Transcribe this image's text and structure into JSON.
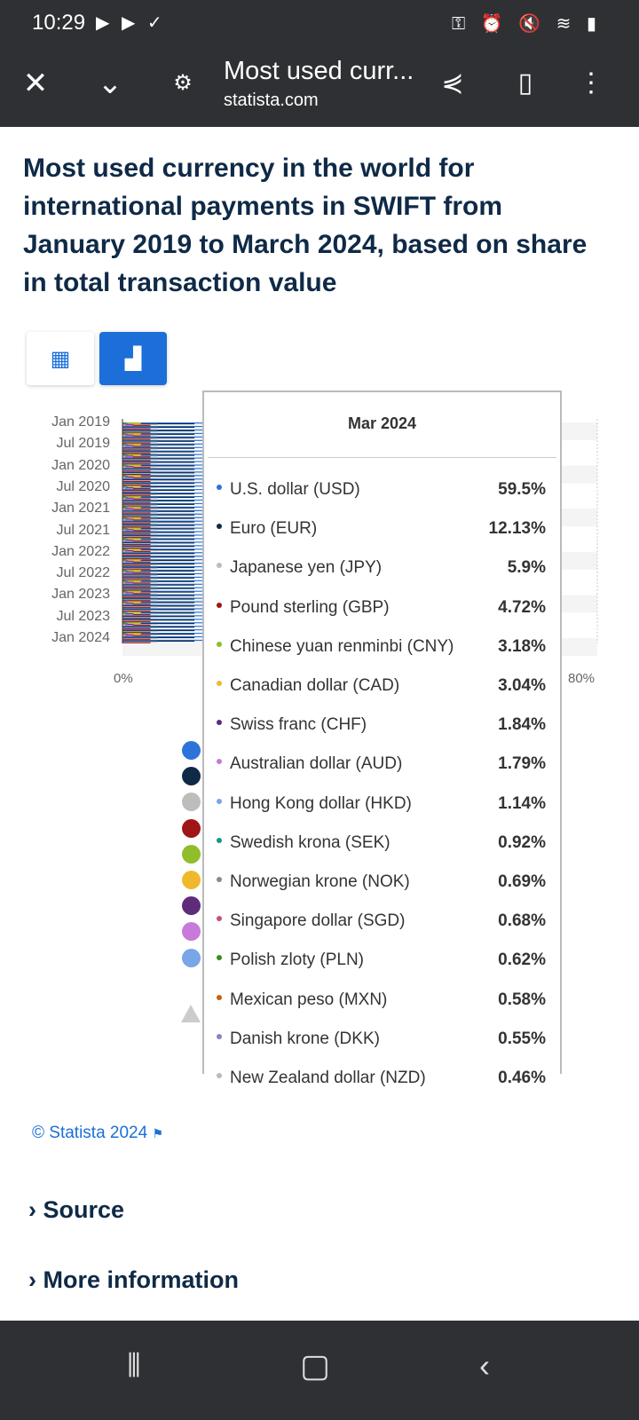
{
  "status_bar": {
    "time": "10:29"
  },
  "browser": {
    "title": "Most used curr...",
    "url": "statista.com"
  },
  "page": {
    "title": "Most used currency in the world for international payments in SWIFT from January 2019 to March 2024, based on share in total transaction value"
  },
  "footer": {
    "copyright": "© Statista 2024",
    "source": "Source",
    "more_info": "More information"
  },
  "colors": {
    "accent": "#1c6fd8",
    "title": "#0f2a47"
  },
  "chart_data": {
    "type": "bar",
    "orientation": "horizontal",
    "y_tick_labels": [
      "Jan 2019",
      "Jul 2019",
      "Jan 2020",
      "Jul 2020",
      "Jan 2021",
      "Jul 2021",
      "Jan 2022",
      "Jul 2022",
      "Jan 2023",
      "Jul 2023",
      "Jan 2024"
    ],
    "x_tick_labels": [
      "0%",
      "80%"
    ],
    "xlim": [
      0,
      80
    ],
    "tooltip": {
      "title": "Mar 2024",
      "series": [
        {
          "name": "U.S. dollar (USD)",
          "value": 59.5,
          "label": "59.5%",
          "color": "#2d73d9"
        },
        {
          "name": "Euro (EUR)",
          "value": 12.13,
          "label": "12.13%",
          "color": "#0f2a47"
        },
        {
          "name": "Japanese yen (JPY)",
          "value": 5.9,
          "label": "5.9%",
          "color": "#bdbdbd"
        },
        {
          "name": "Pound sterling (GBP)",
          "value": 4.72,
          "label": "4.72%",
          "color": "#a01515"
        },
        {
          "name": "Chinese yuan renminbi (CNY)",
          "value": 3.18,
          "label": "3.18%",
          "color": "#8fbe2a"
        },
        {
          "name": "Canadian dollar (CAD)",
          "value": 3.04,
          "label": "3.04%",
          "color": "#f0b92b"
        },
        {
          "name": "Swiss franc (CHF)",
          "value": 1.84,
          "label": "1.84%",
          "color": "#5e2c7a"
        },
        {
          "name": "Australian dollar (AUD)",
          "value": 1.79,
          "label": "1.79%",
          "color": "#c77ad9"
        },
        {
          "name": "Hong Kong dollar (HKD)",
          "value": 1.14,
          "label": "1.14%",
          "color": "#78a6e6"
        },
        {
          "name": "Swedish krona (SEK)",
          "value": 0.92,
          "label": "0.92%",
          "color": "#13998a"
        },
        {
          "name": "Norwegian krone (NOK)",
          "value": 0.69,
          "label": "0.69%",
          "color": "#8a8a8a"
        },
        {
          "name": "Singapore dollar (SGD)",
          "value": 0.68,
          "label": "0.68%",
          "color": "#c9507a"
        },
        {
          "name": "Polish zloty (PLN)",
          "value": 0.62,
          "label": "0.62%",
          "color": "#3f8a1c"
        },
        {
          "name": "Mexican peso (MXN)",
          "value": 0.58,
          "label": "0.58%",
          "color": "#c7600f"
        },
        {
          "name": "Danish krone (DKK)",
          "value": 0.55,
          "label": "0.55%",
          "color": "#8f80bf"
        },
        {
          "name": "New Zealand dollar (NZD)",
          "value": 0.46,
          "label": "0.46%",
          "color": "#bbbbbb"
        }
      ]
    }
  }
}
